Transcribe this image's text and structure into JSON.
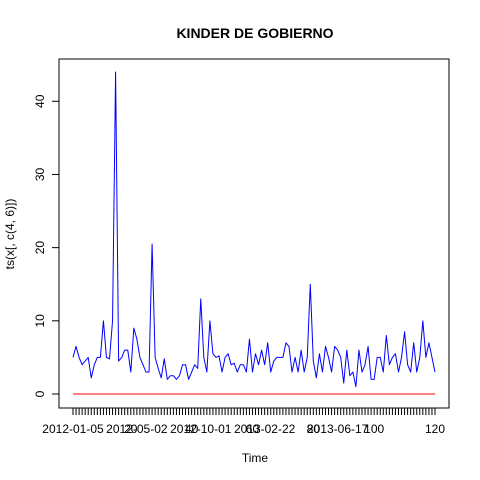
{
  "chart_data": {
    "type": "line",
    "title": "KINDER DE GOBIERNO",
    "xlabel": "Time",
    "ylabel": "ts(x[, c(4, 6)])",
    "xlim": [
      1,
      120
    ],
    "ylim": [
      0,
      44
    ],
    "y_ticks": [
      0,
      10,
      20,
      30,
      40
    ],
    "x_ticks": [
      1,
      2,
      3,
      4,
      5,
      6,
      7,
      8,
      9,
      10,
      11,
      12,
      13,
      14,
      15,
      16,
      17,
      18,
      19,
      20,
      21,
      22,
      23,
      24,
      25,
      26,
      27,
      28,
      29,
      30,
      31,
      32,
      33,
      34,
      35,
      36,
      37,
      38,
      39,
      40,
      41,
      42,
      43,
      44,
      45,
      46,
      47,
      48,
      49,
      50,
      51,
      52,
      53,
      54,
      55,
      56,
      57,
      58,
      59,
      60,
      61,
      62,
      63,
      64,
      65,
      66,
      67,
      68,
      69,
      70,
      71,
      72,
      73,
      74,
      75,
      76,
      77,
      78,
      79,
      80,
      81,
      82,
      83,
      84,
      85,
      86,
      87,
      88,
      89,
      90,
      91,
      92,
      93,
      94,
      95,
      96,
      97,
      98,
      99,
      100,
      101,
      102,
      103,
      104,
      105,
      106,
      107,
      108,
      109,
      110,
      111,
      112,
      113,
      114,
      115,
      116,
      117,
      118,
      119,
      120
    ],
    "x_tick_labels": [
      {
        "x": 1,
        "label": "2012-01-05"
      },
      {
        "x": 20,
        "label": "20"
      },
      {
        "x": 22,
        "label": "2012-05-02"
      },
      {
        "x": 40,
        "label": "40"
      },
      {
        "x": 43,
        "label": "2012-10-01"
      },
      {
        "x": 60,
        "label": "60"
      },
      {
        "x": 64,
        "label": "2013-02-22"
      },
      {
        "x": 80,
        "label": "80"
      },
      {
        "x": 88,
        "label": "2013-06-17"
      },
      {
        "x": 100,
        "label": "100"
      },
      {
        "x": 120,
        "label": "120"
      }
    ],
    "series": [
      {
        "name": "series_blue",
        "color": "#0000ff",
        "values": [
          5,
          6.5,
          5,
          4,
          4.5,
          5,
          2.2,
          4,
          5,
          5,
          10,
          5,
          4.8,
          10,
          44,
          4.5,
          5,
          6,
          6,
          3,
          9,
          7.5,
          5,
          4,
          3,
          3,
          20.5,
          5,
          3.5,
          2.2,
          4.8,
          2,
          2.5,
          2.5,
          2,
          2.5,
          4,
          4,
          2,
          3,
          4,
          3.5,
          13,
          5,
          3,
          10,
          5.5,
          5,
          5.2,
          3,
          5,
          5.5,
          4,
          4.2,
          3,
          4,
          4,
          3,
          7.5,
          3,
          5.5,
          4,
          6,
          4,
          7,
          3,
          4.5,
          5,
          5,
          5,
          7,
          6.5,
          3,
          5,
          3,
          6,
          3,
          5,
          15,
          4.5,
          2.2,
          5.5,
          3,
          6.5,
          5,
          3,
          6.5,
          6,
          5,
          1.5,
          6,
          2.5,
          3,
          1,
          6,
          3,
          4,
          6.5,
          2,
          2,
          5,
          5,
          3,
          8,
          4,
          5,
          5.5,
          3,
          5,
          8.5,
          4,
          3,
          7,
          3,
          5,
          10,
          5,
          7,
          5,
          3
        ]
      },
      {
        "name": "series_red",
        "color": "#ff0000",
        "values": [
          0,
          0
        ]
      }
    ]
  }
}
